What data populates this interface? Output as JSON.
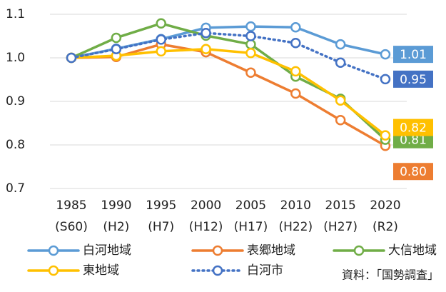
{
  "chart_data": {
    "type": "line",
    "categories": [
      "1985",
      "1990",
      "1995",
      "2000",
      "2005",
      "2010",
      "2015",
      "2020"
    ],
    "category_sublabels": [
      "(S60)",
      "(H2)",
      "(H7)",
      "(H12)",
      "(H17)",
      "(H22)",
      "(H27)",
      "(R2)"
    ],
    "series": [
      {
        "name": "白河地域",
        "color": "#5b9bd5",
        "values": [
          1.0,
          1.021,
          1.043,
          1.069,
          1.072,
          1.07,
          1.031,
          1.008
        ],
        "value_labels": [
          null,
          null,
          null,
          null,
          null,
          null,
          null,
          "1.01"
        ]
      },
      {
        "name": "表郷地域",
        "color": "#ed7d31",
        "values": [
          1.0,
          1.002,
          1.031,
          1.013,
          0.966,
          0.918,
          0.857,
          0.798
        ],
        "value_labels": [
          null,
          null,
          null,
          null,
          null,
          null,
          null,
          "0.80"
        ]
      },
      {
        "name": "大信地域",
        "color": "#70ad47",
        "values": [
          1.0,
          1.046,
          1.079,
          1.051,
          1.031,
          0.957,
          0.906,
          0.812
        ],
        "value_labels": [
          null,
          null,
          null,
          null,
          null,
          null,
          null,
          "0.81"
        ]
      },
      {
        "name": "東地域",
        "color": "#ffc000",
        "values": [
          1.0,
          1.005,
          1.015,
          1.02,
          1.011,
          0.969,
          0.902,
          0.822
        ],
        "value_labels": [
          null,
          null,
          null,
          null,
          null,
          null,
          null,
          "0.82"
        ]
      },
      {
        "name": "白河市",
        "color": "#4472c4",
        "dashed": true,
        "values": [
          1.0,
          1.02,
          1.042,
          1.057,
          1.05,
          1.034,
          0.989,
          0.951
        ],
        "value_labels": [
          null,
          null,
          null,
          null,
          null,
          null,
          null,
          "0.95"
        ]
      }
    ],
    "ylim": [
      0.7,
      1.1
    ],
    "yticks": [
      0.7,
      0.8,
      0.9,
      {
        "value": 1.0,
        "label": "1.0"
      },
      1.1
    ],
    "grid": true,
    "source": "資料：「国勢調査」"
  }
}
